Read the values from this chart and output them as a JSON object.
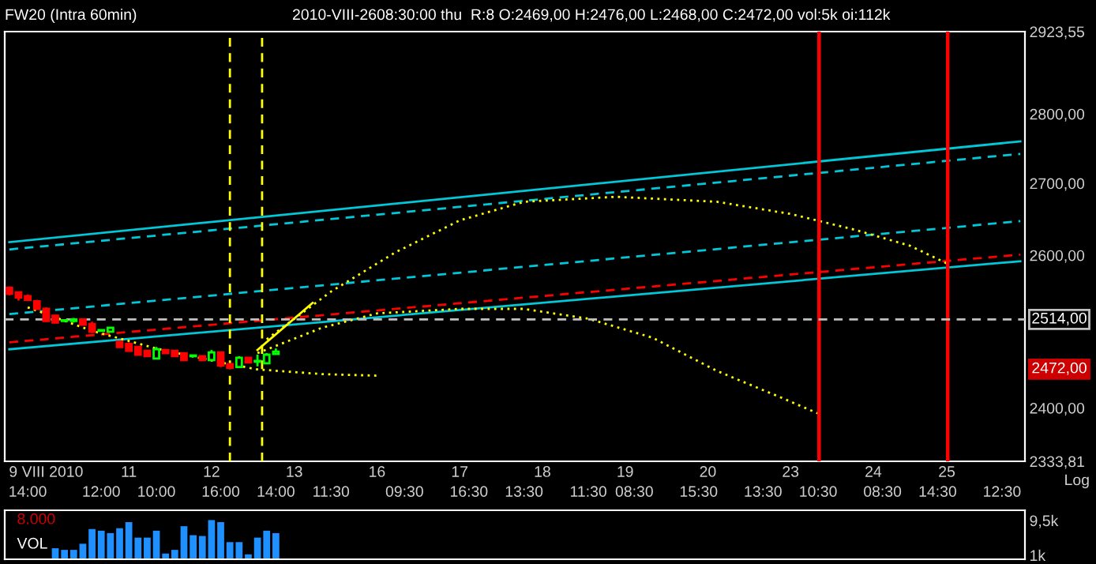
{
  "chart_data": [
    {
      "type": "candlestick",
      "title": "FW20 (Intra 60min)",
      "subtitle": "2010-VIII-2608:30:00 thu  R:8 O:2469,00 H:2476,00 L:2468,00 C:2472,00 vol:5k oi:112k",
      "categories": [
        null,
        null,
        "\n14:00",
        null,
        "9 VIII 2010\n",
        null,
        null,
        null,
        null,
        null,
        "\n12:00",
        null,
        null,
        "11\n",
        null,
        null,
        "\n10:00",
        null,
        null,
        null,
        null,
        null,
        "12\n",
        "\n16:00",
        null,
        null,
        null,
        null,
        null,
        "\n14:00",
        null,
        "13\n",
        null,
        null,
        null,
        "\n11:30",
        null,
        null,
        null,
        null,
        "16\n",
        null,
        null,
        "\n09:30",
        null,
        null,
        null,
        null,
        null,
        "17\n",
        "\n16:30",
        null,
        null,
        null,
        null,
        null,
        "\n13:30",
        null,
        "18\n",
        null,
        null,
        null,
        null,
        "\n11:30",
        null,
        null,
        null,
        "19\n",
        "\n08:30",
        null,
        null,
        null,
        null,
        null,
        null,
        "\n15:30",
        "20\n",
        null,
        null,
        null,
        null,
        null,
        "\n13:30",
        null,
        null,
        "23\n",
        null,
        null,
        "\n10:30",
        null,
        null,
        null,
        null,
        null,
        "24\n",
        "\n08:30",
        null,
        null,
        null,
        null,
        null,
        "\n14:30",
        "25\n",
        null,
        null,
        null,
        null,
        null,
        "\n12:30",
        null,
        null
      ],
      "ohlc": [
        [
          2556,
          2558,
          2546,
          2548
        ],
        [
          2550,
          2551,
          2539,
          2543
        ],
        [
          2545,
          2547,
          2539,
          2540
        ],
        [
          2538,
          2540,
          2527,
          2528
        ],
        [
          2528,
          2530,
          2511,
          2512
        ],
        [
          2519,
          2520,
          2509,
          2510
        ],
        [
          2512,
          2514,
          2511,
          2513
        ],
        [
          2512,
          2516,
          2510,
          2514
        ],
        [
          2514,
          2515,
          2506,
          2507
        ],
        [
          2508,
          2511,
          2496,
          2498
        ],
        [
          2499,
          2501,
          2498,
          2500
        ],
        [
          2498,
          2504,
          2497,
          2503
        ],
        [
          2485,
          2486,
          2477,
          2478
        ],
        [
          2482,
          2484,
          2472,
          2473
        ],
        [
          2478,
          2479,
          2467,
          2468
        ],
        [
          2473,
          2474,
          2465,
          2466
        ],
        [
          2463,
          2478,
          2462,
          2475
        ],
        [
          2474,
          2475,
          2469,
          2470
        ],
        [
          2473,
          2474,
          2465,
          2466
        ],
        [
          2470,
          2471,
          2460,
          2461
        ],
        [
          2466,
          2468,
          2465,
          2467
        ],
        [
          2466,
          2467,
          2460,
          2461
        ],
        [
          2461,
          2474,
          2460,
          2471
        ],
        [
          2471,
          2472,
          2452,
          2454
        ],
        [
          2456,
          2457,
          2450,
          2451
        ],
        [
          2452,
          2466,
          2451,
          2464
        ],
        [
          2464,
          2465,
          2457,
          2458
        ],
        [
          2459,
          2468,
          2453,
          2460
        ],
        [
          2457,
          2470,
          2456,
          2468
        ],
        [
          2469,
          2476,
          2468,
          2472
        ],
        null,
        null,
        null,
        null,
        null,
        null,
        null,
        null,
        null,
        null,
        null,
        null,
        null,
        null,
        null,
        null,
        null,
        null,
        null,
        null,
        null,
        null,
        null,
        null,
        null,
        null,
        null,
        null,
        null,
        null,
        null,
        null,
        null,
        null,
        null,
        null,
        null,
        null,
        null,
        null,
        null,
        null,
        null,
        null,
        null,
        null,
        null,
        null,
        null,
        null,
        null,
        null,
        null,
        null,
        null,
        null,
        null,
        null,
        null,
        null,
        null,
        null,
        null,
        null,
        null,
        null,
        null,
        null,
        null,
        null,
        null,
        null,
        null,
        null,
        null,
        null,
        null,
        null,
        null,
        null,
        null
      ],
      "colors": [
        "#ff0000",
        "#ff0000",
        "#ff0000",
        "#ff0000",
        "#ff0000",
        "#ff0000",
        "#00ff00",
        "#00ff00",
        "#ff0000",
        "#ff0000",
        "#00ff00",
        "#00ff00",
        "#ff0000",
        "#ff0000",
        "#ff0000",
        "#ff0000",
        "#00ff00",
        "#ff0000",
        "#ff0000",
        "#ff0000",
        "#00ff00",
        "#ff0000",
        "#00ff00",
        "#ff0000",
        "#ff0000",
        "#00ff00",
        "#ff0000",
        "#00ff00",
        "#00ff00",
        "#00ff00",
        null,
        null,
        null,
        null,
        null,
        null,
        null,
        null,
        null,
        null,
        null,
        null,
        null,
        null,
        null,
        null,
        null,
        null,
        null,
        null,
        null,
        null,
        null,
        null,
        null,
        null,
        null,
        null,
        null,
        null,
        null,
        null,
        null,
        null,
        null,
        null,
        null,
        null,
        null,
        null,
        null,
        null,
        null,
        null,
        null,
        null,
        null,
        null,
        null,
        null,
        null,
        null,
        null,
        null,
        null,
        null,
        null,
        null,
        null,
        null,
        null,
        null,
        null,
        null,
        null,
        null,
        null,
        null,
        null,
        null,
        null,
        null,
        null,
        null,
        null,
        null,
        null,
        null,
        null,
        null,
        null
      ],
      "series": [
        {
          "type": "line",
          "color": "#00c8d8",
          "line_style": "solid",
          "values": [
            2618,
            null,
            null,
            null,
            null,
            null,
            null,
            null,
            null,
            null,
            null,
            null,
            null,
            null,
            null,
            null,
            null,
            null,
            null,
            null,
            null,
            null,
            null,
            null,
            null,
            null,
            null,
            null,
            null,
            null,
            null,
            null,
            null,
            null,
            null,
            null,
            null,
            null,
            null,
            null,
            null,
            null,
            null,
            null,
            null,
            null,
            null,
            null,
            null,
            null,
            null,
            null,
            null,
            null,
            null,
            null,
            null,
            null,
            null,
            null,
            null,
            null,
            null,
            null,
            null,
            null,
            null,
            null,
            null,
            null,
            null,
            null,
            null,
            null,
            null,
            null,
            null,
            null,
            null,
            null,
            null,
            null,
            null,
            null,
            null,
            null,
            null,
            null,
            null,
            null,
            null,
            null,
            null,
            null,
            null,
            null,
            null,
            null,
            null,
            null,
            null,
            null,
            null,
            null,
            null,
            null,
            null,
            null,
            null,
            null,
            2760
          ]
        },
        {
          "type": "line",
          "color": "#00c8d8",
          "line_style": "dashed",
          "values": [
            2608,
            null,
            null,
            null,
            null,
            null,
            null,
            null,
            null,
            null,
            null,
            null,
            null,
            null,
            null,
            null,
            null,
            null,
            null,
            null,
            null,
            null,
            null,
            null,
            null,
            null,
            null,
            null,
            null,
            null,
            null,
            null,
            null,
            null,
            null,
            null,
            null,
            null,
            null,
            null,
            null,
            null,
            null,
            null,
            null,
            null,
            null,
            null,
            null,
            null,
            null,
            null,
            null,
            null,
            null,
            null,
            null,
            null,
            null,
            null,
            null,
            null,
            null,
            null,
            null,
            null,
            null,
            null,
            null,
            null,
            null,
            null,
            null,
            null,
            null,
            null,
            null,
            null,
            null,
            null,
            null,
            null,
            null,
            null,
            null,
            null,
            null,
            null,
            null,
            null,
            null,
            null,
            null,
            null,
            null,
            null,
            null,
            null,
            null,
            null,
            null,
            null,
            null,
            null,
            null,
            null,
            null,
            null,
            null,
            null,
            2742
          ]
        },
        {
          "type": "line",
          "color": "#00c8d8",
          "line_style": "dashed",
          "values": [
            2521,
            null,
            null,
            null,
            null,
            null,
            null,
            null,
            null,
            null,
            null,
            null,
            null,
            null,
            null,
            null,
            null,
            null,
            null,
            null,
            null,
            null,
            null,
            null,
            null,
            null,
            null,
            null,
            null,
            null,
            null,
            null,
            null,
            null,
            null,
            null,
            null,
            null,
            null,
            null,
            null,
            null,
            null,
            null,
            null,
            null,
            null,
            null,
            null,
            null,
            null,
            null,
            null,
            null,
            null,
            null,
            null,
            null,
            null,
            null,
            null,
            null,
            null,
            null,
            null,
            null,
            null,
            null,
            null,
            null,
            null,
            null,
            null,
            null,
            null,
            null,
            null,
            null,
            null,
            null,
            null,
            null,
            null,
            null,
            null,
            null,
            null,
            null,
            null,
            null,
            null,
            null,
            null,
            null,
            null,
            null,
            null,
            null,
            null,
            null,
            null,
            null,
            null,
            null,
            null,
            null,
            null,
            null,
            null,
            null,
            2647
          ]
        },
        {
          "type": "line",
          "color": "#00c8d8",
          "line_style": "solid",
          "values": [
            2475,
            null,
            null,
            null,
            null,
            null,
            null,
            null,
            null,
            null,
            null,
            null,
            null,
            null,
            null,
            null,
            null,
            null,
            null,
            null,
            null,
            null,
            null,
            null,
            null,
            null,
            null,
            null,
            null,
            null,
            null,
            null,
            null,
            null,
            null,
            null,
            null,
            null,
            null,
            null,
            null,
            null,
            null,
            null,
            null,
            null,
            null,
            null,
            null,
            null,
            null,
            null,
            null,
            null,
            null,
            null,
            null,
            null,
            null,
            null,
            null,
            null,
            null,
            null,
            null,
            null,
            null,
            null,
            null,
            null,
            null,
            null,
            null,
            null,
            null,
            null,
            null,
            null,
            null,
            null,
            null,
            null,
            null,
            null,
            null,
            null,
            null,
            null,
            null,
            null,
            null,
            null,
            null,
            null,
            null,
            null,
            null,
            null,
            null,
            null,
            null,
            null,
            null,
            null,
            null,
            null,
            null,
            null,
            null,
            null,
            2592
          ]
        },
        {
          "type": "line",
          "color": "#ff0000",
          "line_style": "dashed",
          "values": [
            2484,
            null,
            null,
            null,
            null,
            null,
            null,
            null,
            null,
            null,
            null,
            null,
            null,
            null,
            null,
            null,
            null,
            null,
            null,
            null,
            null,
            null,
            null,
            null,
            null,
            null,
            null,
            null,
            null,
            null,
            null,
            null,
            null,
            null,
            null,
            null,
            null,
            null,
            null,
            null,
            null,
            null,
            null,
            null,
            null,
            null,
            null,
            null,
            null,
            null,
            null,
            null,
            null,
            null,
            null,
            null,
            null,
            null,
            null,
            null,
            null,
            null,
            null,
            null,
            null,
            null,
            null,
            null,
            null,
            null,
            null,
            null,
            null,
            null,
            null,
            null,
            null,
            null,
            null,
            null,
            null,
            null,
            null,
            null,
            null,
            null,
            null,
            null,
            null,
            null,
            null,
            null,
            null,
            null,
            null,
            null,
            null,
            null,
            null,
            null,
            null,
            null,
            null,
            null,
            null,
            null,
            null,
            null,
            null,
            null,
            2601
          ]
        },
        {
          "type": "line",
          "color": "#ffff00",
          "line_style": "dotted",
          "values": [
            null,
            null,
            null,
            null,
            null,
            null,
            null,
            null,
            null,
            null,
            null,
            null,
            null,
            null,
            null,
            null,
            null,
            null,
            null,
            null,
            null,
            null,
            null,
            null,
            null,
            null,
            null,
            null,
            2488,
            null,
            null,
            null,
            null,
            null,
            null,
            2551,
            null,
            null,
            null,
            null,
            null,
            null,
            2604,
            null,
            null,
            null,
            null,
            null,
            null,
            2648,
            null,
            null,
            null,
            null,
            null,
            null,
            2674,
            null,
            null,
            null,
            null,
            null,
            null,
            null,
            null,
            null,
            2681,
            null,
            null,
            null,
            null,
            null,
            null,
            null,
            null,
            null,
            null,
            2674,
            null,
            null,
            null,
            null,
            null,
            null,
            null,
            2657,
            null,
            null,
            null,
            null,
            null,
            null,
            2635,
            null,
            null,
            null,
            null,
            null,
            2613,
            null,
            null,
            null,
            2589,
            null,
            null,
            null,
            null,
            null,
            null,
            null,
            null
          ]
        },
        {
          "type": "line",
          "color": "#ffff00",
          "line_style": "dotted",
          "values": [
            null,
            null,
            null,
            null,
            null,
            null,
            null,
            null,
            null,
            null,
            null,
            null,
            null,
            null,
            null,
            null,
            null,
            null,
            null,
            null,
            null,
            null,
            null,
            null,
            null,
            null,
            null,
            2470,
            null,
            null,
            null,
            null,
            null,
            null,
            2503,
            null,
            null,
            null,
            null,
            null,
            2522,
            null,
            null,
            null,
            null,
            null,
            null,
            null,
            null,
            2528,
            null,
            null,
            null,
            null,
            null,
            null,
            2528,
            null,
            null,
            null,
            null,
            null,
            null,
            2515,
            null,
            null,
            null,
            null,
            null,
            null,
            2490,
            null,
            null,
            null,
            null,
            null,
            null,
            2447,
            null,
            null,
            null,
            null,
            null,
            null,
            2413,
            null,
            null,
            null,
            2393,
            null,
            null,
            null,
            null,
            null,
            null,
            null,
            null,
            null,
            null,
            null,
            null,
            null,
            null,
            null,
            null,
            null,
            null,
            null,
            null,
            null,
            null
          ]
        },
        {
          "type": "line",
          "color": "#ffff00",
          "line_style": "dotted",
          "values": [
            null,
            null,
            2530,
            null,
            null,
            null,
            null,
            null,
            null,
            2499,
            null,
            null,
            null,
            null,
            null,
            null,
            2476,
            null,
            null,
            null,
            null,
            null,
            null,
            2458,
            null,
            null,
            null,
            2449,
            null,
            null,
            null,
            null,
            null,
            null,
            2443,
            null,
            null,
            null,
            null,
            null,
            2441,
            null,
            null,
            null,
            null,
            null,
            null,
            null,
            null,
            null,
            null,
            null,
            null,
            null,
            null,
            null,
            null,
            null,
            null,
            null,
            null,
            null,
            null,
            null,
            null,
            null,
            null,
            null,
            null,
            null,
            null,
            null,
            null,
            null,
            null,
            null,
            null,
            null,
            null,
            null,
            null,
            null,
            null,
            null,
            null,
            null,
            null,
            null,
            null,
            null,
            null,
            null,
            null,
            null,
            null,
            null,
            null,
            null,
            null,
            null,
            null,
            null,
            null,
            null,
            null,
            null,
            null,
            null,
            null,
            null,
            null
          ]
        },
        {
          "type": "line",
          "color": "#ffff00",
          "line_style": "solid",
          "values": [
            null,
            null,
            null,
            null,
            null,
            null,
            null,
            null,
            null,
            null,
            null,
            null,
            null,
            null,
            null,
            null,
            null,
            null,
            null,
            null,
            null,
            null,
            null,
            null,
            null,
            null,
            null,
            2474,
            null,
            null,
            null,
            null,
            null,
            2536,
            null,
            null,
            null,
            null,
            null,
            null,
            null,
            null,
            null,
            null,
            null,
            null,
            null,
            null,
            null,
            null,
            null,
            null,
            null,
            null,
            null,
            null,
            null,
            null,
            null,
            null,
            null,
            null,
            null,
            null,
            null,
            null,
            null,
            null,
            null,
            null,
            null,
            null,
            null,
            null,
            null,
            null,
            null,
            null,
            null,
            null,
            null,
            null,
            null,
            null,
            null,
            null,
            null,
            null,
            null,
            null,
            null,
            null,
            null,
            null,
            null,
            null,
            null,
            null,
            null,
            null,
            null,
            null,
            null,
            null,
            null,
            null,
            null,
            null,
            null,
            null,
            null
          ]
        }
      ],
      "ref_lines": [
        {
          "axis": "y",
          "value": 2514,
          "label": "2514,00",
          "color": "#c0c0c0",
          "line_style": "dashed"
        }
      ],
      "annotations": [
        "Log",
        "2472,00"
      ],
      "log": "y",
      "ylim": [
        2333.81,
        2923.55
      ],
      "yticks": [
        {
          "value": 2333.81,
          "label": "2333,81"
        },
        {
          "value": 2400,
          "label": "2400,00"
        },
        {
          "value": 2600,
          "label": "2600,00"
        },
        {
          "value": 2700,
          "label": "2700,00"
        },
        {
          "value": 2800,
          "label": "2800,00"
        },
        {
          "value": 2923.55,
          "label": "2923,55"
        }
      ],
      "grid": false,
      "legend": false
    },
    {
      "type": "bar",
      "title": "VOL",
      "categories": [
        null,
        null,
        null,
        null,
        null,
        null,
        null,
        null,
        null,
        null,
        null,
        null,
        null,
        null,
        null,
        null,
        null,
        null,
        null,
        null,
        null,
        null,
        null,
        null,
        null,
        null,
        null,
        null,
        null,
        null,
        null,
        null,
        null,
        null,
        null,
        null,
        null,
        null,
        null,
        null,
        null,
        null,
        null,
        null,
        null,
        null,
        null,
        null,
        null,
        null,
        null,
        null,
        null,
        null,
        null,
        null,
        null,
        null,
        null,
        null,
        null,
        null,
        null,
        null,
        null,
        null,
        null,
        null,
        null,
        null,
        null,
        null,
        null,
        null,
        null,
        null,
        null,
        null,
        null,
        null,
        null,
        null,
        null,
        null,
        null,
        null,
        null,
        null,
        null,
        null,
        null,
        null,
        null,
        null,
        null,
        null,
        null,
        null,
        null,
        null,
        null,
        null,
        null,
        null,
        null,
        null,
        null,
        null,
        null,
        null,
        null
      ],
      "series": [
        {
          "color": "#1e90ff",
          "values": [
            null,
            null,
            null,
            null,
            null,
            2700,
            2300,
            2300,
            3800,
            7400,
            7000,
            6400,
            7600,
            9100,
            5300,
            5300,
            7000,
            1400,
            2300,
            8100,
            5900,
            5700,
            9600,
            9100,
            4200,
            4200,
            1200,
            5300,
            7000,
            6400,
            null,
            null,
            null,
            null,
            null,
            null,
            null,
            null,
            null,
            null,
            null,
            null,
            null,
            null,
            null,
            null,
            null,
            null,
            null,
            null,
            null,
            null,
            null,
            null,
            null,
            null,
            null,
            null,
            null,
            null,
            null,
            null,
            null,
            null,
            null,
            null,
            null,
            null,
            null,
            null,
            null,
            null,
            null,
            null,
            null,
            null,
            null,
            null,
            null,
            null,
            null,
            null,
            null,
            null,
            null,
            null,
            null,
            null,
            null,
            null,
            null,
            null,
            null,
            null,
            null,
            null,
            null,
            null,
            null,
            null,
            null,
            null,
            null,
            null,
            null,
            null,
            null,
            null,
            null,
            null,
            null
          ]
        }
      ],
      "annotations": [
        "8.000"
      ],
      "ylim": [
        0,
        12000
      ],
      "yticks": [
        {
          "value": 1000,
          "label": "1k"
        },
        {
          "value": 9500,
          "label": "9,5k"
        }
      ],
      "tick_labels": "y",
      "grid": false,
      "legend": false
    }
  ]
}
